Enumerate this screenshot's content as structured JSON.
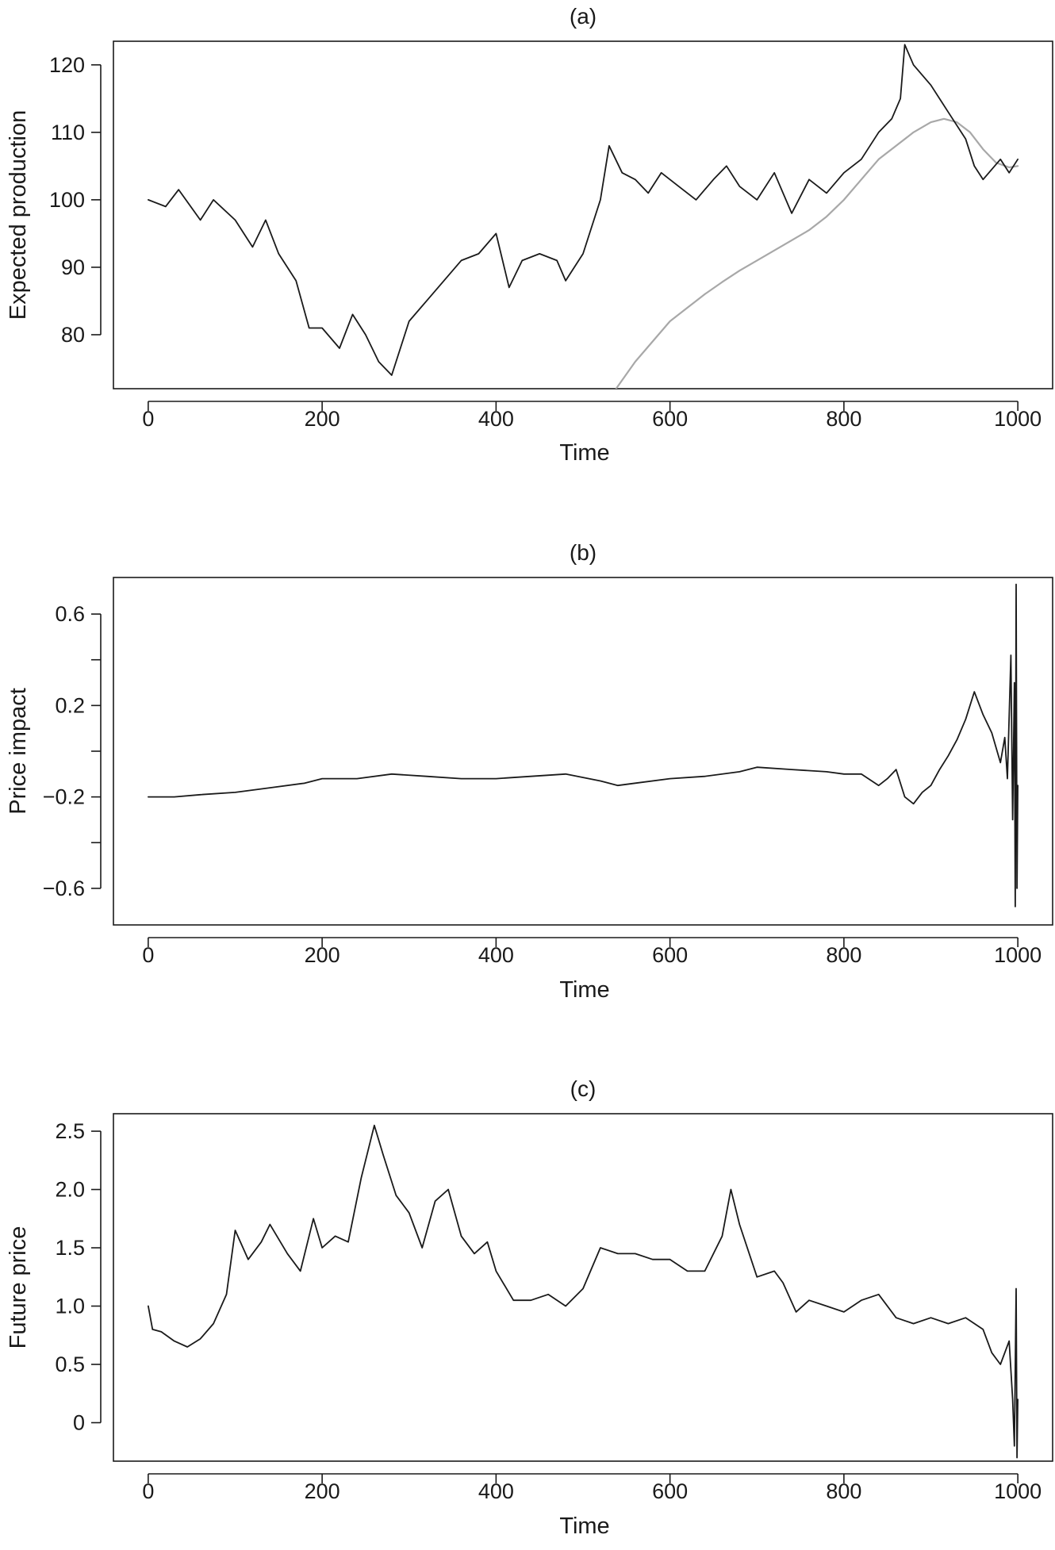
{
  "colors": {
    "background": "#ffffff",
    "axis": "#1a1a1a",
    "primary_series": "#1a1a1a",
    "secondary_series": "#a8a8a8"
  },
  "chart_data": [
    {
      "type": "line",
      "title": "(a)",
      "xlabel": "Time",
      "ylabel": "Expected production",
      "xlim": [
        -40,
        1040
      ],
      "ylim": [
        72,
        123.5
      ],
      "xticks": [
        0,
        200,
        400,
        600,
        800,
        1000
      ],
      "yticks": [
        80,
        90,
        100,
        110,
        120
      ],
      "grid": false,
      "series": [
        {
          "color": "#1a1a1a",
          "points": [
            [
              0,
              100
            ],
            [
              20,
              99
            ],
            [
              35,
              101.5
            ],
            [
              60,
              97
            ],
            [
              75,
              100
            ],
            [
              100,
              97
            ],
            [
              120,
              93
            ],
            [
              135,
              97
            ],
            [
              150,
              92
            ],
            [
              170,
              88
            ],
            [
              185,
              81
            ],
            [
              200,
              81
            ],
            [
              220,
              78
            ],
            [
              235,
              83
            ],
            [
              250,
              80
            ],
            [
              265,
              76
            ],
            [
              280,
              74
            ],
            [
              300,
              82
            ],
            [
              320,
              85
            ],
            [
              340,
              88
            ],
            [
              360,
              91
            ],
            [
              380,
              92
            ],
            [
              400,
              95
            ],
            [
              415,
              87
            ],
            [
              430,
              91
            ],
            [
              450,
              92
            ],
            [
              470,
              91
            ],
            [
              480,
              88
            ],
            [
              500,
              92
            ],
            [
              520,
              100
            ],
            [
              530,
              108
            ],
            [
              545,
              104
            ],
            [
              560,
              103
            ],
            [
              575,
              101
            ],
            [
              590,
              104
            ],
            [
              610,
              102
            ],
            [
              630,
              100
            ],
            [
              650,
              103
            ],
            [
              665,
              105
            ],
            [
              680,
              102
            ],
            [
              700,
              100
            ],
            [
              720,
              104
            ],
            [
              740,
              98
            ],
            [
              760,
              103
            ],
            [
              780,
              101
            ],
            [
              800,
              104
            ],
            [
              820,
              106
            ],
            [
              840,
              110
            ],
            [
              855,
              112
            ],
            [
              865,
              115
            ],
            [
              870,
              123
            ],
            [
              880,
              120
            ],
            [
              900,
              117
            ],
            [
              920,
              113
            ],
            [
              940,
              109
            ],
            [
              950,
              105
            ],
            [
              960,
              103
            ],
            [
              980,
              106
            ],
            [
              990,
              104
            ],
            [
              1000,
              106
            ]
          ]
        },
        {
          "color": "#a8a8a8",
          "points": [
            [
              538,
              72
            ],
            [
              560,
              76
            ],
            [
              580,
              79
            ],
            [
              600,
              82
            ],
            [
              620,
              84
            ],
            [
              640,
              86
            ],
            [
              660,
              87.8
            ],
            [
              680,
              89.5
            ],
            [
              700,
              91
            ],
            [
              720,
              92.5
            ],
            [
              740,
              94
            ],
            [
              760,
              95.5
            ],
            [
              780,
              97.5
            ],
            [
              800,
              100
            ],
            [
              820,
              103
            ],
            [
              840,
              106
            ],
            [
              860,
              108
            ],
            [
              880,
              110
            ],
            [
              900,
              111.5
            ],
            [
              915,
              112
            ],
            [
              930,
              111.5
            ],
            [
              945,
              110
            ],
            [
              960,
              107.5
            ],
            [
              975,
              105.5
            ],
            [
              990,
              104.8
            ],
            [
              1000,
              105
            ]
          ]
        }
      ]
    },
    {
      "type": "line",
      "title": "(b)",
      "xlabel": "Time",
      "ylabel": "Price impact",
      "xlim": [
        -40,
        1040
      ],
      "ylim": [
        -0.76,
        0.76
      ],
      "xticks": [
        0,
        200,
        400,
        600,
        800,
        1000
      ],
      "yticks": [
        -0.6,
        -0.2,
        0.2,
        0.6
      ],
      "ytick_minor": [
        -0.4,
        0,
        0.4
      ],
      "grid": false,
      "series": [
        {
          "color": "#1a1a1a",
          "points": [
            [
              0,
              -0.2
            ],
            [
              30,
              -0.2
            ],
            [
              60,
              -0.19
            ],
            [
              100,
              -0.18
            ],
            [
              140,
              -0.16
            ],
            [
              180,
              -0.14
            ],
            [
              200,
              -0.12
            ],
            [
              240,
              -0.12
            ],
            [
              280,
              -0.1
            ],
            [
              320,
              -0.11
            ],
            [
              360,
              -0.12
            ],
            [
              400,
              -0.12
            ],
            [
              440,
              -0.11
            ],
            [
              480,
              -0.1
            ],
            [
              520,
              -0.13
            ],
            [
              540,
              -0.15
            ],
            [
              560,
              -0.14
            ],
            [
              600,
              -0.12
            ],
            [
              640,
              -0.11
            ],
            [
              680,
              -0.09
            ],
            [
              700,
              -0.07
            ],
            [
              740,
              -0.08
            ],
            [
              780,
              -0.09
            ],
            [
              800,
              -0.1
            ],
            [
              820,
              -0.1
            ],
            [
              840,
              -0.15
            ],
            [
              850,
              -0.12
            ],
            [
              860,
              -0.08
            ],
            [
              870,
              -0.2
            ],
            [
              880,
              -0.23
            ],
            [
              890,
              -0.18
            ],
            [
              900,
              -0.15
            ],
            [
              910,
              -0.08
            ],
            [
              920,
              -0.02
            ],
            [
              930,
              0.05
            ],
            [
              940,
              0.14
            ],
            [
              950,
              0.26
            ],
            [
              960,
              0.16
            ],
            [
              970,
              0.08
            ],
            [
              980,
              -0.05
            ],
            [
              985,
              0.06
            ],
            [
              988,
              -0.12
            ],
            [
              992,
              0.42
            ],
            [
              994,
              -0.3
            ],
            [
              996,
              0.3
            ],
            [
              997,
              -0.68
            ],
            [
              998,
              0.73
            ],
            [
              999,
              -0.6
            ],
            [
              1000,
              -0.15
            ]
          ]
        }
      ]
    },
    {
      "type": "line",
      "title": "(c)",
      "xlabel": "Time",
      "ylabel": "Future price",
      "xlim": [
        -40,
        1040
      ],
      "ylim": [
        -0.33,
        2.65
      ],
      "xticks": [
        0,
        200,
        400,
        600,
        800,
        1000
      ],
      "yticks": [
        0,
        0.5,
        1.0,
        1.5,
        2.0,
        2.5
      ],
      "ytick_labels": [
        "0",
        "0.5",
        "1.0",
        "1.5",
        "2.0",
        "2.5"
      ],
      "grid": false,
      "series": [
        {
          "color": "#1a1a1a",
          "points": [
            [
              0,
              1.0
            ],
            [
              5,
              0.8
            ],
            [
              15,
              0.78
            ],
            [
              30,
              0.7
            ],
            [
              45,
              0.65
            ],
            [
              60,
              0.72
            ],
            [
              75,
              0.85
            ],
            [
              90,
              1.1
            ],
            [
              100,
              1.65
            ],
            [
              115,
              1.4
            ],
            [
              130,
              1.55
            ],
            [
              140,
              1.7
            ],
            [
              160,
              1.45
            ],
            [
              175,
              1.3
            ],
            [
              190,
              1.75
            ],
            [
              200,
              1.5
            ],
            [
              215,
              1.6
            ],
            [
              230,
              1.55
            ],
            [
              245,
              2.1
            ],
            [
              260,
              2.55
            ],
            [
              270,
              2.3
            ],
            [
              285,
              1.95
            ],
            [
              300,
              1.8
            ],
            [
              315,
              1.5
            ],
            [
              330,
              1.9
            ],
            [
              345,
              2.0
            ],
            [
              360,
              1.6
            ],
            [
              375,
              1.45
            ],
            [
              390,
              1.55
            ],
            [
              400,
              1.3
            ],
            [
              420,
              1.05
            ],
            [
              440,
              1.05
            ],
            [
              460,
              1.1
            ],
            [
              480,
              1.0
            ],
            [
              500,
              1.15
            ],
            [
              520,
              1.5
            ],
            [
              540,
              1.45
            ],
            [
              560,
              1.45
            ],
            [
              580,
              1.4
            ],
            [
              600,
              1.4
            ],
            [
              620,
              1.3
            ],
            [
              640,
              1.3
            ],
            [
              660,
              1.6
            ],
            [
              670,
              2.0
            ],
            [
              680,
              1.7
            ],
            [
              700,
              1.25
            ],
            [
              720,
              1.3
            ],
            [
              730,
              1.2
            ],
            [
              745,
              0.95
            ],
            [
              760,
              1.05
            ],
            [
              780,
              1.0
            ],
            [
              800,
              0.95
            ],
            [
              820,
              1.05
            ],
            [
              840,
              1.1
            ],
            [
              860,
              0.9
            ],
            [
              880,
              0.85
            ],
            [
              900,
              0.9
            ],
            [
              920,
              0.85
            ],
            [
              940,
              0.9
            ],
            [
              960,
              0.8
            ],
            [
              970,
              0.6
            ],
            [
              980,
              0.5
            ],
            [
              990,
              0.7
            ],
            [
              994,
              0.2
            ],
            [
              996,
              -0.2
            ],
            [
              998,
              1.15
            ],
            [
              999,
              -0.3
            ],
            [
              1000,
              0.2
            ]
          ]
        }
      ]
    }
  ]
}
